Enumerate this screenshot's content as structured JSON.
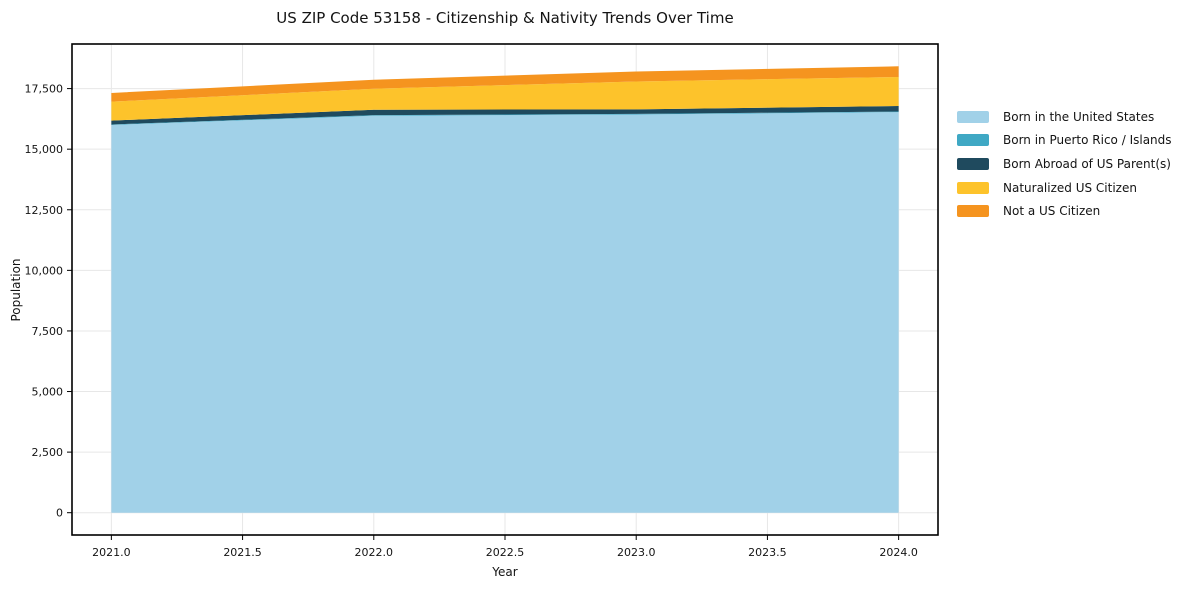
{
  "title": "US ZIP Code 53158 - Citizenship & Nativity Trends Over Time",
  "chart_data": {
    "type": "area",
    "stacked": true,
    "title": "US ZIP Code 53158 - Citizenship & Nativity Trends Over Time",
    "xlabel": "Year",
    "ylabel": "Population",
    "x": [
      2021,
      2022,
      2023,
      2024
    ],
    "series": [
      {
        "name": "Born in the United States",
        "color": "#a1d1e8",
        "values": [
          16000,
          16380,
          16430,
          16530
        ]
      },
      {
        "name": "Born in Puerto Rico / Islands",
        "color": "#3fa8c4",
        "values": [
          20,
          25,
          25,
          25
        ]
      },
      {
        "name": "Born Abroad of US Parent(s)",
        "color": "#1f4a5e",
        "values": [
          160,
          220,
          190,
          225
        ]
      },
      {
        "name": "Naturalized US Citizen",
        "color": "#fdc32b",
        "values": [
          780,
          870,
          1150,
          1200
        ]
      },
      {
        "name": "Not a US Citizen",
        "color": "#f5941f",
        "values": [
          360,
          370,
          410,
          440
        ]
      }
    ],
    "totals_by_year": [
      17320,
      17865,
      18205,
      18420
    ],
    "xlim": [
      2020.85,
      2024.15
    ],
    "ylim": [
      -920,
      19340
    ],
    "x_tick_labels": [
      "2021.0",
      "2021.5",
      "2022.0",
      "2022.5",
      "2023.0",
      "2023.5",
      "2024.0"
    ],
    "x_tick_values": [
      2021,
      2021.5,
      2022,
      2022.5,
      2023,
      2023.5,
      2024
    ],
    "y_tick_labels": [
      "0",
      "2,500",
      "5,000",
      "7,500",
      "10,000",
      "12,500",
      "15,000",
      "17,500"
    ],
    "y_tick_values": [
      0,
      2500,
      5000,
      7500,
      10000,
      12500,
      15000,
      17500
    ],
    "grid": true,
    "legend_position": "right of plot, no frame"
  }
}
